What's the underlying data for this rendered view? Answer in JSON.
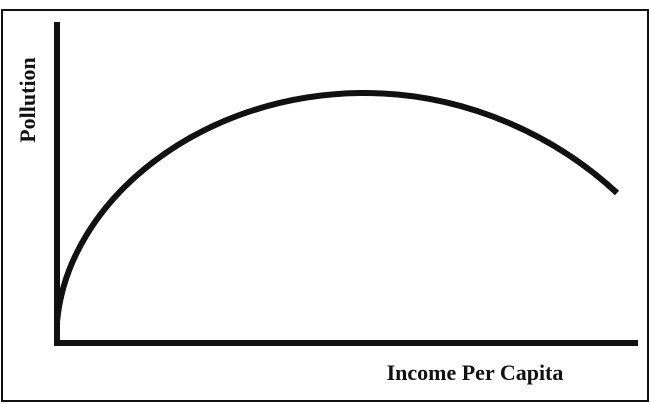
{
  "axes": {
    "y_label": "Pollution",
    "x_label": "Income Per Capita"
  }
}
